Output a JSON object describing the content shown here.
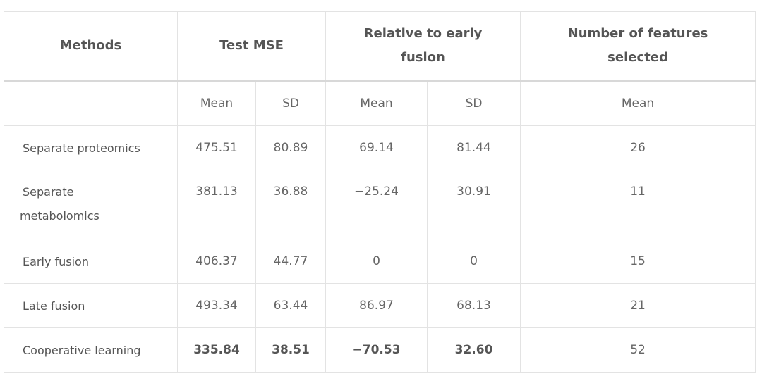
{
  "headers": {
    "methods": "Methods",
    "test_mse": "Test MSE",
    "relative_line1": "Relative to early",
    "relative_line2": "fusion",
    "features_line1": "Number of features",
    "features_line2": "selected"
  },
  "subheaders": {
    "mse_mean": "Mean",
    "mse_sd": "SD",
    "rel_mean": "Mean",
    "rel_sd": "SD",
    "feat_mean": "Mean"
  },
  "rows": [
    {
      "method": "Separate proteomics",
      "mse_mean": "475.51",
      "mse_sd": "80.89",
      "rel_mean": "69.14",
      "rel_sd": "81.44",
      "features": "26"
    },
    {
      "method_line1": "Separate",
      "method_line2": "metabolomics",
      "mse_mean": "381.13",
      "mse_sd": "36.88",
      "rel_mean": "−25.24",
      "rel_sd": "30.91",
      "features": "11"
    },
    {
      "method": "Early fusion",
      "mse_mean": "406.37",
      "mse_sd": "44.77",
      "rel_mean": "0",
      "rel_sd": "0",
      "features": "15"
    },
    {
      "method": "Late fusion",
      "mse_mean": "493.34",
      "mse_sd": "63.44",
      "rel_mean": "86.97",
      "rel_sd": "68.13",
      "features": "21"
    },
    {
      "method": "Cooperative learning",
      "mse_mean": "335.84",
      "mse_sd": "38.51",
      "rel_mean": "−70.53",
      "rel_sd": "32.60",
      "features": "52"
    }
  ]
}
